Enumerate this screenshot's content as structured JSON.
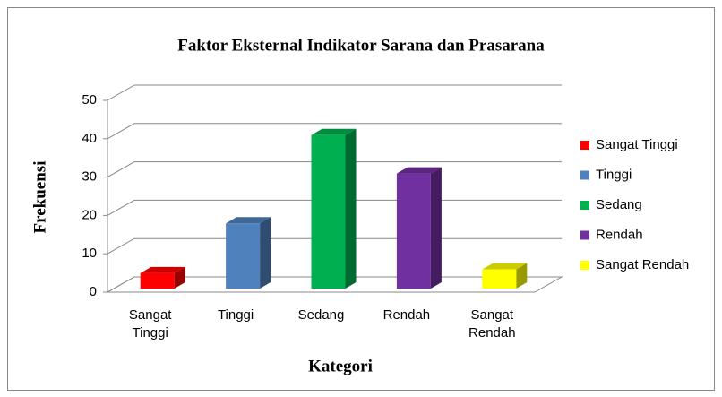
{
  "chart_data": {
    "type": "bar3d",
    "title": "Faktor Eksternal Indikator Sarana dan Prasarana",
    "ylabel": "Frekuensi",
    "xlabel": "Kategori",
    "categories": [
      "Sangat Tinggi",
      "Tinggi",
      "Sedang",
      "Rendah",
      "Sangat Rendah"
    ],
    "values": [
      4,
      17,
      40,
      30,
      5
    ],
    "colors": [
      "#ff0000",
      "#4f81bd",
      "#00b050",
      "#7030a0",
      "#ffff00"
    ],
    "ylim": [
      0,
      50
    ],
    "yticks": [
      0,
      10,
      20,
      30,
      40,
      50
    ],
    "grid": true,
    "legend": "right"
  }
}
